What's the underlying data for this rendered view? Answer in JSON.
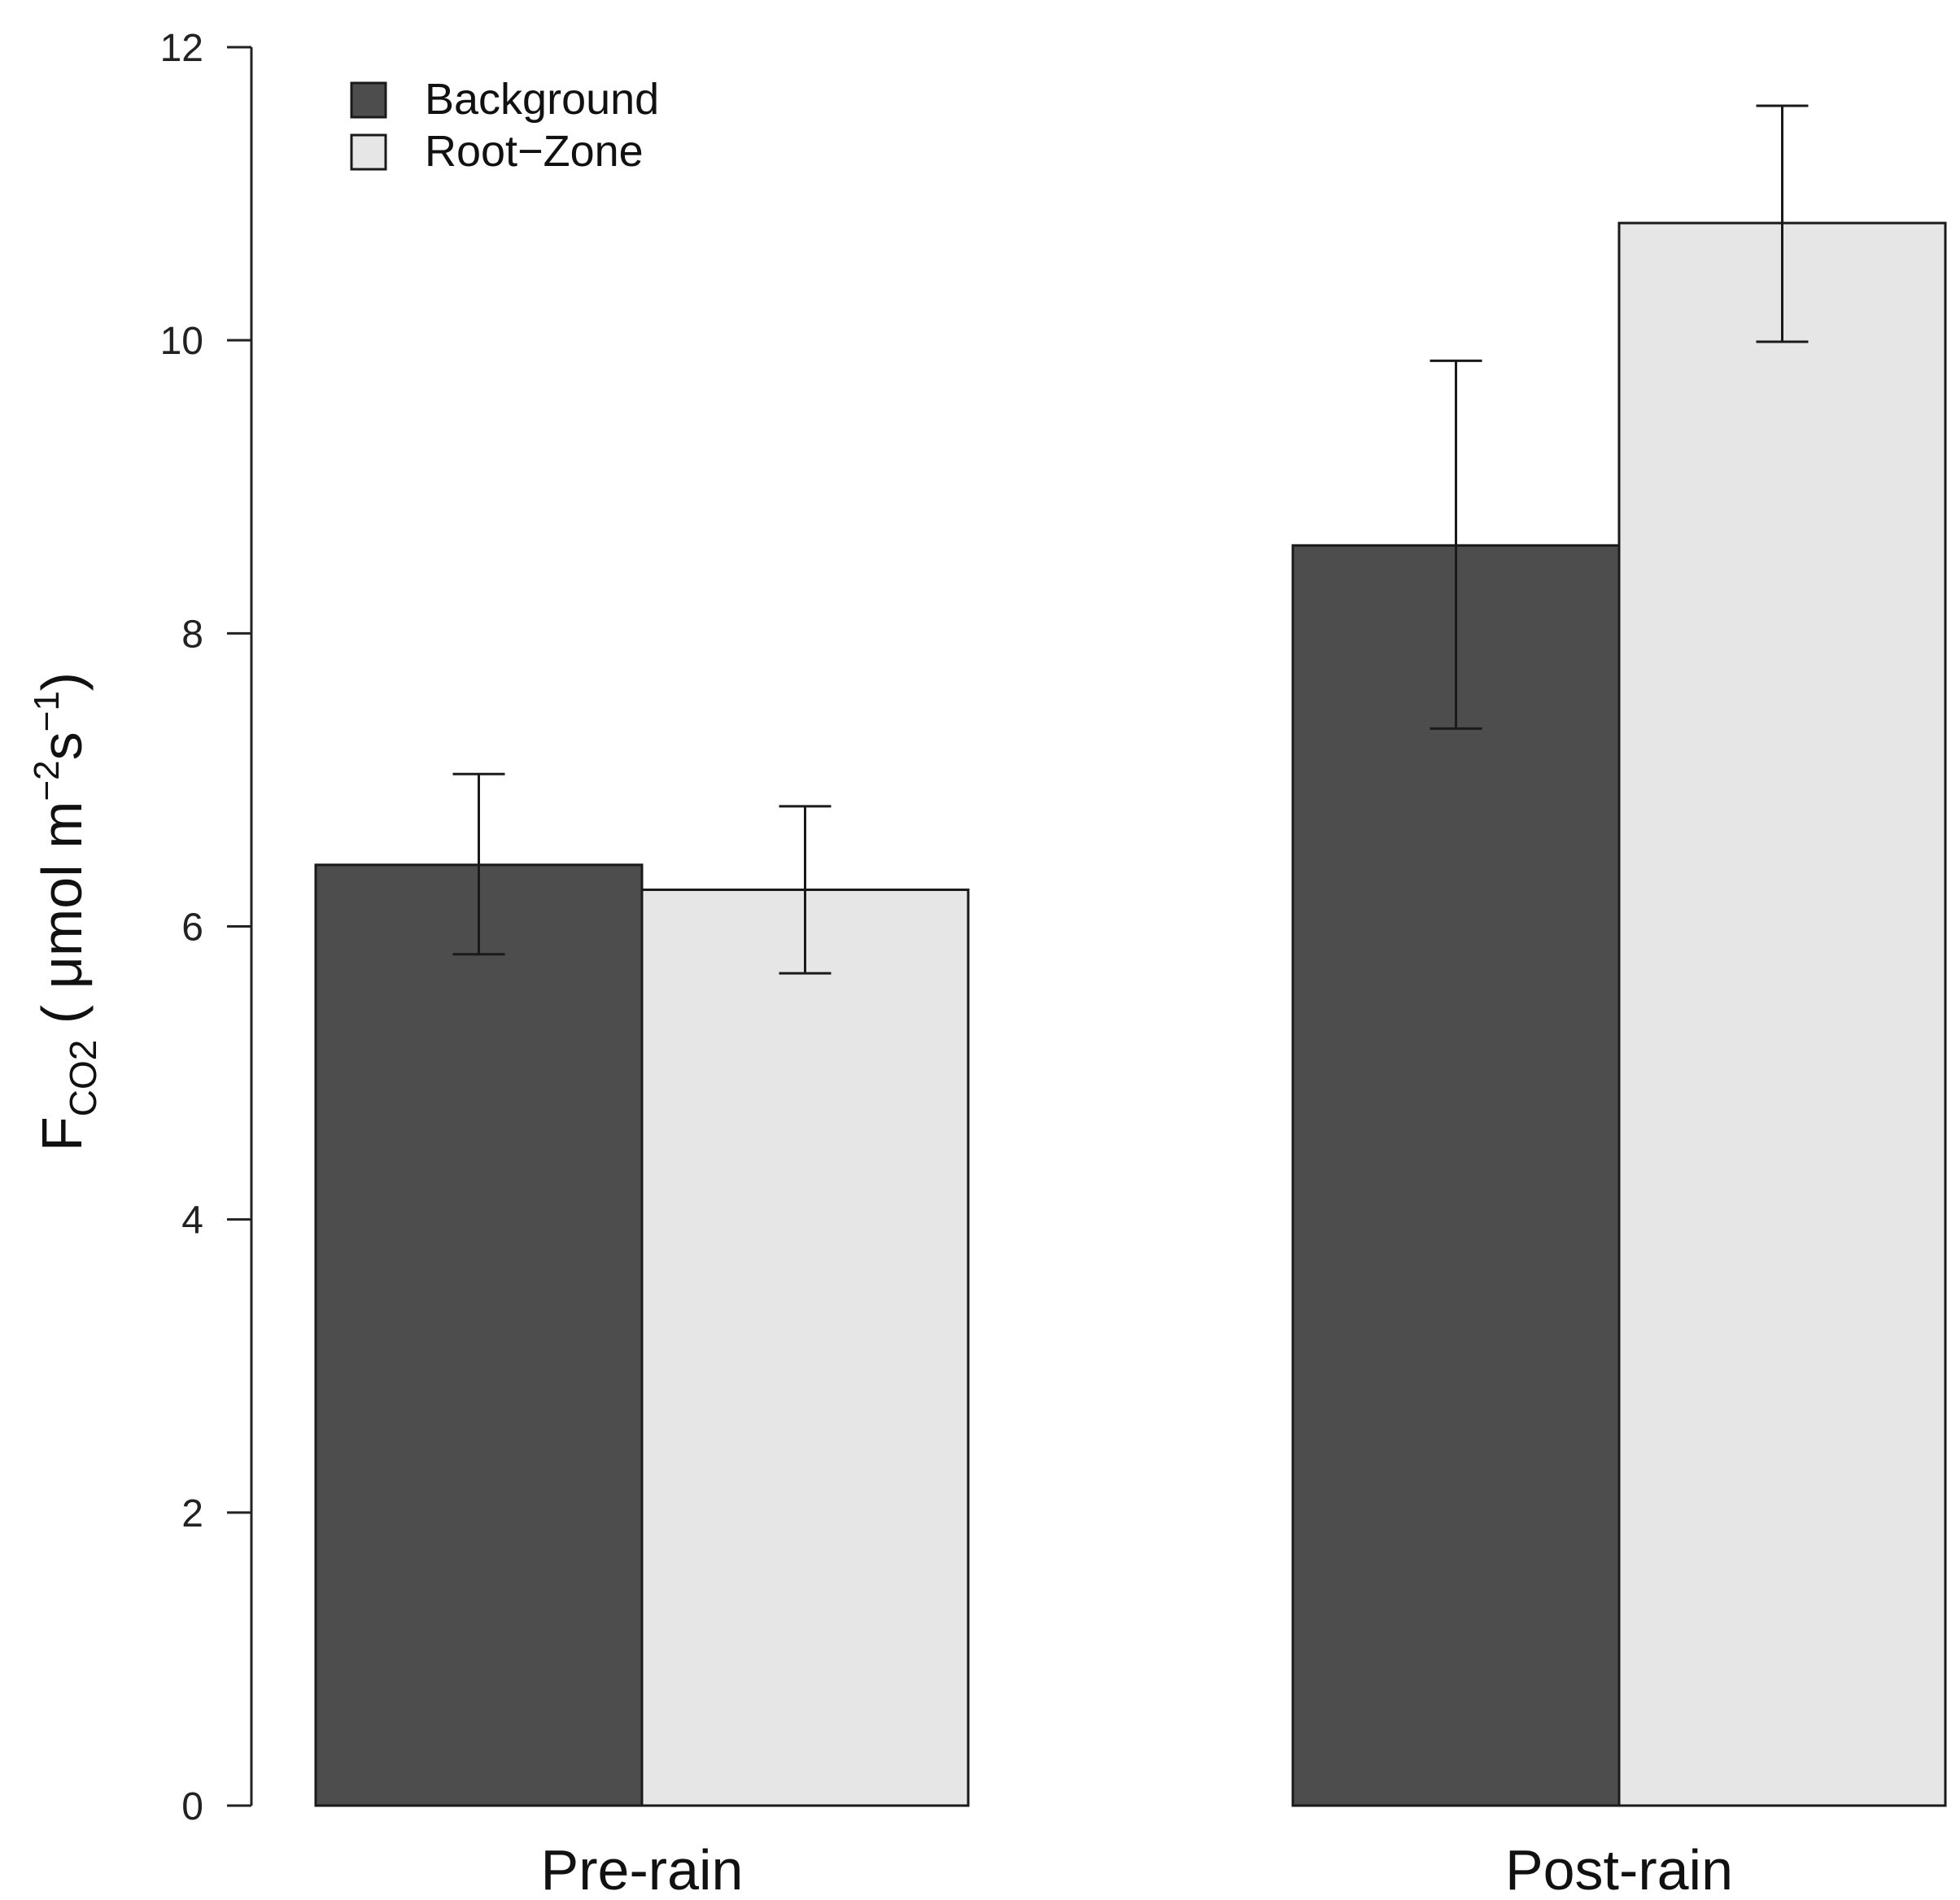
{
  "chart_data": {
    "type": "bar",
    "title": "",
    "xlabel": "",
    "ylabel": {
      "main": "F",
      "subscript": "CO2",
      "units_open": " ( μmol m",
      "units_exp1": "−2",
      "units_mid": "s",
      "units_exp2": "−1",
      "units_close": ")"
    },
    "categories": [
      "Pre-rain",
      "Post-rain"
    ],
    "series": [
      {
        "name": "Background",
        "color": "#4d4d4d",
        "values": [
          6.42,
          8.6
        ],
        "error_low": [
          5.81,
          7.35
        ],
        "error_high": [
          7.04,
          9.86
        ]
      },
      {
        "name": "Root−Zone",
        "color": "#e6e6e6",
        "values": [
          6.25,
          10.8
        ],
        "error_low": [
          5.68,
          9.99
        ],
        "error_high": [
          6.82,
          11.6
        ]
      }
    ],
    "ylim": [
      0,
      12
    ],
    "yticks": [
      0,
      2,
      4,
      6,
      8,
      10,
      12
    ],
    "grid": false,
    "legend_position": "top-left"
  }
}
